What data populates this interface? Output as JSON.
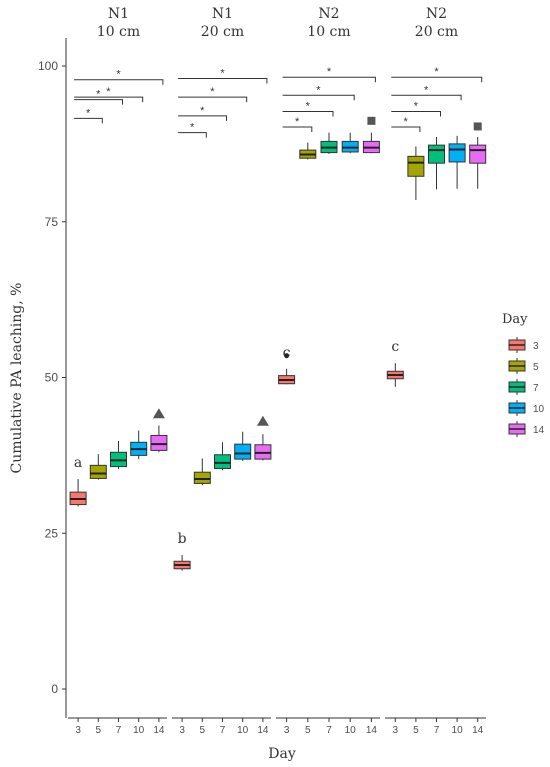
{
  "chart_data": {
    "type": "boxplot",
    "ylabel": "Cumulative  PA leaching, %",
    "xlabel": "Day",
    "ylim": [
      0,
      100
    ],
    "yticks": [
      0,
      25,
      50,
      75,
      100
    ],
    "categories": [
      "3",
      "5",
      "7",
      "10",
      "14"
    ],
    "legend": {
      "title": "Day",
      "placement": "right",
      "entries": [
        "3",
        "5",
        "7",
        "10",
        "14"
      ]
    },
    "colors": [
      "#F8766D",
      "#A3A500",
      "#00BF7D",
      "#00B0F6",
      "#E76BF3"
    ],
    "panels": [
      {
        "facet_line1": "N1",
        "facet_line2": "10 cm",
        "letter": "a",
        "boxes": [
          {
            "min": 29.3,
            "q1": 29.6,
            "median": 30.5,
            "q3": 31.6,
            "max": 33.7
          },
          {
            "min": 33.6,
            "q1": 33.8,
            "median": 34.6,
            "q3": 35.9,
            "max": 37.7
          },
          {
            "min": 35.3,
            "q1": 35.7,
            "median": 36.7,
            "q3": 38.0,
            "max": 39.8
          },
          {
            "min": 36.9,
            "q1": 37.5,
            "median": 38.5,
            "q3": 39.6,
            "max": 41.5
          },
          {
            "min": 38.0,
            "q1": 38.3,
            "median": 39.3,
            "q3": 40.7,
            "max": 42.3
          }
        ],
        "outliers": [
          {
            "box": 4,
            "value": 44.1,
            "shape": "triangle"
          }
        ],
        "sig_brackets": [
          {
            "from": 0,
            "to": 1,
            "y": 91.6
          },
          {
            "from": 0,
            "to": 2,
            "y": 94.6
          },
          {
            "from": 0,
            "to": 3,
            "y": 95.0
          },
          {
            "from": 0,
            "to": 4,
            "y": 97.8
          }
        ]
      },
      {
        "facet_line1": "N1",
        "facet_line2": "20 cm",
        "letter": "b",
        "boxes": [
          {
            "min": 19.0,
            "q1": 19.3,
            "median": 19.9,
            "q3": 20.5,
            "max": 21.5
          },
          {
            "min": 32.7,
            "q1": 33.0,
            "median": 33.7,
            "q3": 34.8,
            "max": 37.0
          },
          {
            "min": 35.1,
            "q1": 35.4,
            "median": 36.3,
            "q3": 37.6,
            "max": 39.6
          },
          {
            "min": 36.6,
            "q1": 36.9,
            "median": 37.8,
            "q3": 39.3,
            "max": 41.3
          },
          {
            "min": 36.7,
            "q1": 36.9,
            "median": 37.9,
            "q3": 39.2,
            "max": 40.9
          }
        ],
        "outliers": [
          {
            "box": 4,
            "value": 42.9,
            "shape": "triangle"
          }
        ],
        "sig_brackets": [
          {
            "from": 0,
            "to": 1,
            "y": 89.3
          },
          {
            "from": 0,
            "to": 2,
            "y": 92.0
          },
          {
            "from": 0,
            "to": 3,
            "y": 95.0
          },
          {
            "from": 0,
            "to": 4,
            "y": 98.0
          }
        ]
      },
      {
        "facet_line1": "N2",
        "facet_line2": "10 cm",
        "letter": "c",
        "boxes": [
          {
            "min": 48.9,
            "q1": 49.0,
            "median": 49.6,
            "q3": 50.3,
            "max": 51.4
          },
          {
            "min": 85.0,
            "q1": 85.2,
            "median": 85.8,
            "q3": 86.5,
            "max": 87.7
          },
          {
            "min": 85.9,
            "q1": 86.1,
            "median": 86.9,
            "q3": 87.9,
            "max": 89.3
          },
          {
            "min": 86.0,
            "q1": 86.2,
            "median": 86.9,
            "q3": 87.9,
            "max": 89.3
          },
          {
            "min": 86.0,
            "q1": 86.1,
            "median": 86.9,
            "q3": 87.9,
            "max": 89.3
          }
        ],
        "outliers": [
          {
            "box": 0,
            "value": 53.5,
            "shape": "circle"
          },
          {
            "box": 4,
            "value": 91.2,
            "shape": "square"
          }
        ],
        "sig_brackets": [
          {
            "from": 0,
            "to": 1,
            "y": 90.2
          },
          {
            "from": 0,
            "to": 2,
            "y": 92.7
          },
          {
            "from": 0,
            "to": 3,
            "y": 95.3
          },
          {
            "from": 0,
            "to": 4,
            "y": 98.2
          }
        ]
      },
      {
        "facet_line1": "N2",
        "facet_line2": "20 cm",
        "letter": "c",
        "boxes": [
          {
            "min": 48.5,
            "q1": 49.8,
            "median": 50.4,
            "q3": 51.0,
            "max": 52.3
          },
          {
            "min": 78.5,
            "q1": 82.3,
            "median": 84.5,
            "q3": 85.5,
            "max": 87.1
          },
          {
            "min": 80.2,
            "q1": 84.4,
            "median": 86.5,
            "q3": 87.3,
            "max": 88.6
          },
          {
            "min": 80.3,
            "q1": 84.6,
            "median": 86.6,
            "q3": 87.5,
            "max": 88.8
          },
          {
            "min": 80.3,
            "q1": 84.4,
            "median": 86.5,
            "q3": 87.3,
            "max": 88.6
          }
        ],
        "outliers": [
          {
            "box": 4,
            "value": 90.3,
            "shape": "square"
          }
        ],
        "sig_brackets": [
          {
            "from": 0,
            "to": 1,
            "y": 90.2
          },
          {
            "from": 0,
            "to": 2,
            "y": 92.7
          },
          {
            "from": 0,
            "to": 3,
            "y": 95.3
          },
          {
            "from": 0,
            "to": 4,
            "y": 98.2
          }
        ]
      }
    ],
    "sig_symbol": "*"
  }
}
